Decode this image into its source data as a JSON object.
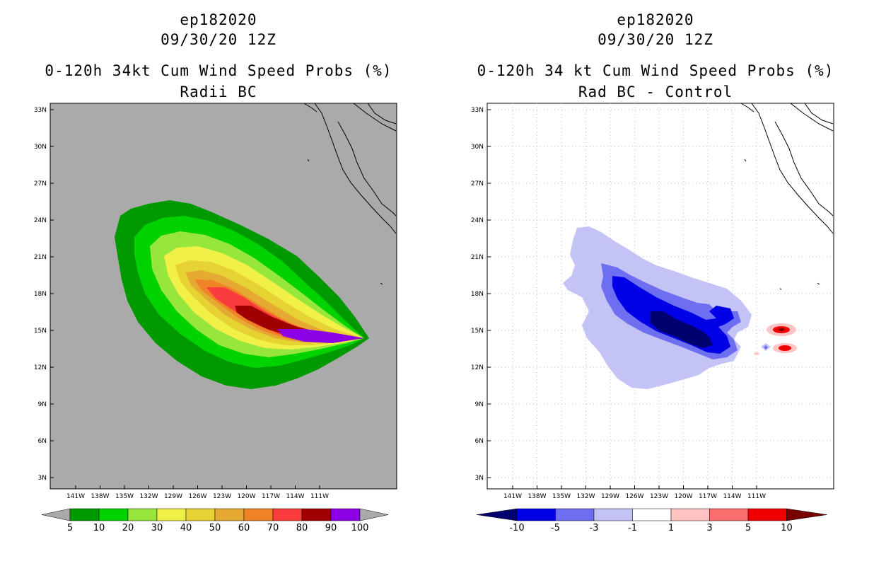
{
  "left": {
    "storm_id": "ep182020",
    "datetime": "09/30/20 12Z",
    "title": "0-120h 34kt Cum Wind Speed Probs (%)",
    "subtitle": "Radii BC",
    "colorbar_labels": [
      "5",
      "10",
      "20",
      "30",
      "40",
      "50",
      "60",
      "70",
      "80",
      "90",
      "100"
    ],
    "colors": {
      "background": "#aaaaaa",
      "c5": "#009a00",
      "c10": "#00d200",
      "c20": "#96e63c",
      "c30": "#f0f046",
      "c40": "#e6d232",
      "c50": "#e6aa32",
      "c60": "#f08228",
      "c70": "#fa3c3c",
      "c80": "#a00000",
      "c90": "#8c00e6"
    }
  },
  "right": {
    "storm_id": "ep182020",
    "datetime": "09/30/20 12Z",
    "title": "0-120h 34 kt Cum Wind Speed Probs (%)",
    "subtitle": "Rad BC - Control",
    "colorbar_labels": [
      "-10",
      "-5",
      "-3",
      "-1",
      "1",
      "3",
      "5",
      "10"
    ],
    "colors": {
      "n10": "#00006e",
      "n5": "#0000e6",
      "n3": "#6e6ef0",
      "n1": "#c3c3f5",
      "p1": "#ffc3c3",
      "p3": "#fa6e6e",
      "p5": "#f00000",
      "p10": "#780000"
    }
  },
  "axes": {
    "lat_labels": [
      "33N",
      "30N",
      "27N",
      "24N",
      "21N",
      "18N",
      "15N",
      "12N",
      "9N",
      "6N",
      "3N"
    ],
    "lon_labels": [
      "141W",
      "138W",
      "135W",
      "132W",
      "129W",
      "126W",
      "123W",
      "120W",
      "117W",
      "114W",
      "111W"
    ]
  }
}
